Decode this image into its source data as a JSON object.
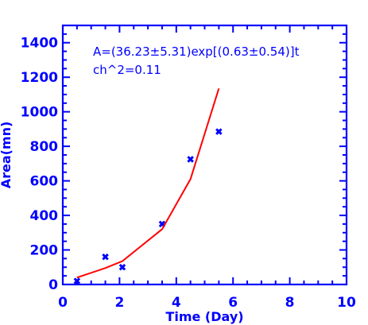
{
  "chart_data": {
    "type": "scatter",
    "xlabel": "Time (Day)",
    "ylabel": "Area(mn)",
    "xlim": [
      0,
      10
    ],
    "ylim": [
      0,
      1500
    ],
    "x_ticks": [
      0,
      2,
      4,
      6,
      8,
      10
    ],
    "x_tick_labels": [
      "0",
      "2",
      "4",
      "6",
      "8",
      "10"
    ],
    "y_ticks": [
      0,
      200,
      400,
      600,
      800,
      1000,
      1200,
      1400
    ],
    "y_tick_labels": [
      "0",
      "200",
      "400",
      "600",
      "800",
      "1000",
      "1200",
      "1400"
    ],
    "annotations": [
      "A=(36.23±5.31)exp[(0.63±0.54)]t",
      "ch^2=0.11"
    ],
    "series": [
      {
        "kind": "points",
        "marker": "x",
        "color": "#0000ff",
        "x": [
          0.5,
          1.5,
          2.1,
          3.5,
          4.5,
          5.5
        ],
        "y": [
          20,
          160,
          100,
          350,
          725,
          885
        ]
      },
      {
        "kind": "line",
        "color": "#ff0000",
        "x": [
          0.5,
          1.5,
          2.1,
          3.5,
          4.5,
          5.5
        ],
        "y": [
          40,
          95,
          135,
          320,
          610,
          1135
        ]
      }
    ],
    "axis_color": "#0000ff",
    "grid": false
  }
}
